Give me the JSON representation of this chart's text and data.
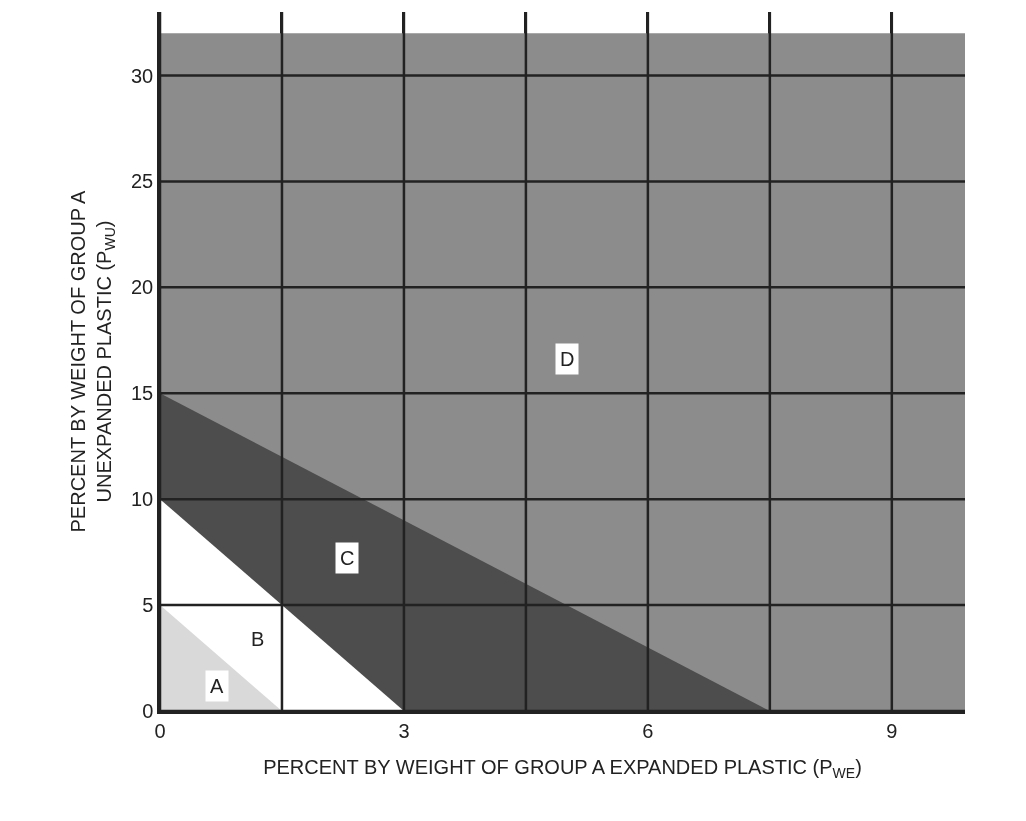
{
  "chart_data": {
    "type": "area",
    "xlabel": "PERCENT BY WEIGHT OF GROUP A EXPANDED PLASTIC (P$_{WE}$)",
    "ylabel": "PERCENT BY WEIGHT OF GROUP A\nUNEXPANDED PLASTIC (P$_{WU}$)",
    "series": [
      {
        "color": "#8c8c8c",
        "x": [
          0,
          9.9
        ],
        "values": [
          32,
          32
        ]
      },
      {
        "color": "#4d4d4d",
        "x": [
          0,
          7.5
        ],
        "values": [
          15,
          0
        ]
      },
      {
        "color": "#ffffff",
        "x": [
          0,
          3
        ],
        "values": [
          10,
          0
        ]
      },
      {
        "color": "#d9d9d9",
        "x": [
          0,
          1.5
        ],
        "values": [
          5,
          0
        ]
      }
    ],
    "annotations": [
      {
        "text": "A",
        "x": 0.7,
        "y": 1.2
      },
      {
        "text": "B",
        "x": 1.2,
        "y": 3.4
      },
      {
        "text": "C",
        "x": 2.3,
        "y": 7.2
      },
      {
        "text": "D",
        "x": 5,
        "y": 16.6
      }
    ],
    "xlim": [
      0,
      9.9
    ],
    "xticks": [
      0,
      {
        "value": 1.5,
        "label": null
      },
      3,
      {
        "value": 4.5,
        "label": null
      },
      6,
      {
        "value": 7.5,
        "label": null
      },
      9
    ],
    "ylim": [
      0,
      33
    ],
    "yticks": [
      0,
      5,
      10,
      15,
      20,
      25,
      30
    ],
    "grid": true
  }
}
